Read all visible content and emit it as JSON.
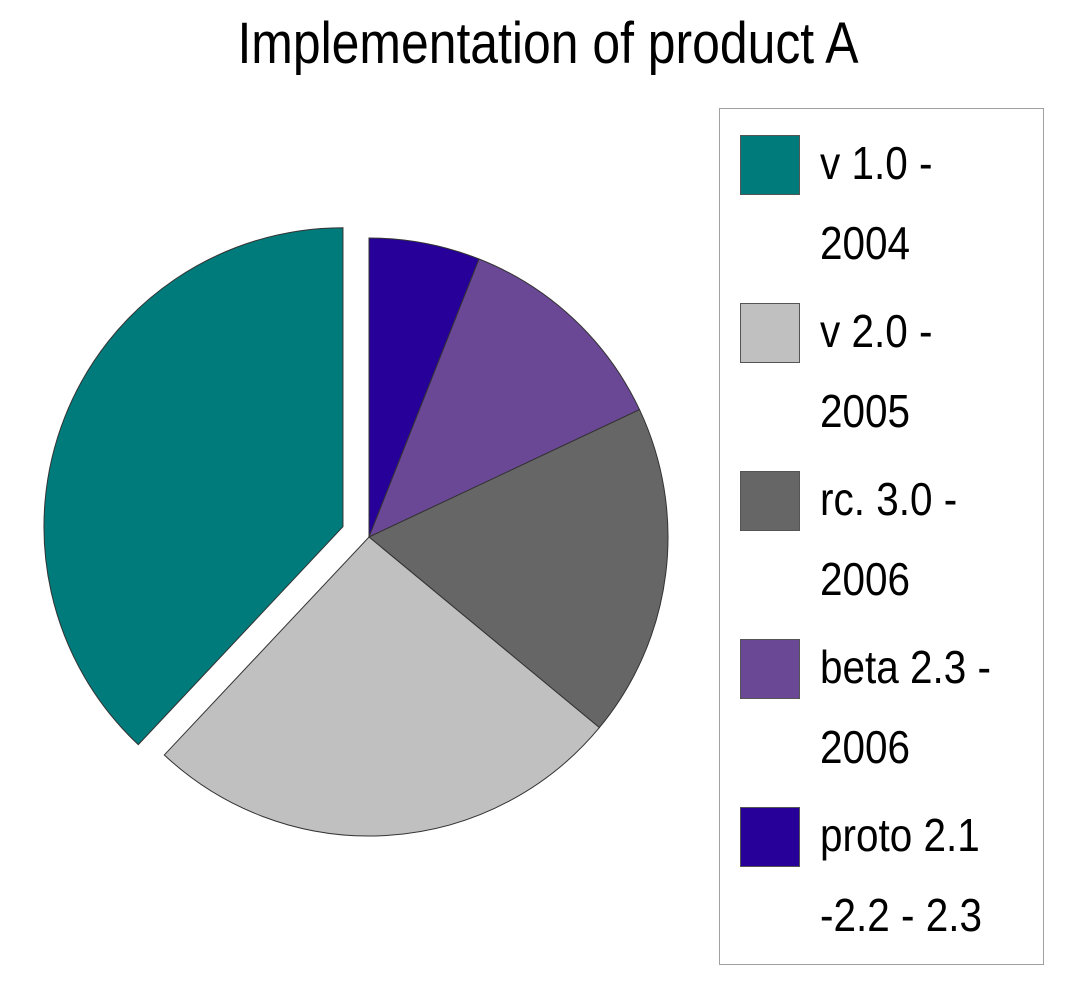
{
  "chart_data": {
    "type": "pie",
    "title": "Implementation of product A",
    "categories": [
      "v 1.0 - 2004",
      "v 2.0 - 2005",
      "rc. 3.0 - 2006",
      "beta 2.3 - 2006",
      "proto 2.1 -2.2 - 2.3"
    ],
    "values": [
      38,
      26,
      18,
      12,
      6
    ],
    "colors": [
      "#007b7b",
      "#c0c0c0",
      "#666666",
      "#6b4896",
      "#27009a"
    ],
    "exploded": [
      true,
      false,
      false,
      false,
      false
    ],
    "legend_position": "right",
    "legend": [
      {
        "line1": "v 1.0 -",
        "line2": "2004"
      },
      {
        "line1": "v 2.0 -",
        "line2": "2005"
      },
      {
        "line1": "rc. 3.0 -",
        "line2": "2006"
      },
      {
        "line1": "beta 2.3 -",
        "line2": "2006"
      },
      {
        "line1": "proto 2.1",
        "line2": "-2.2 - 2.3"
      }
    ]
  }
}
